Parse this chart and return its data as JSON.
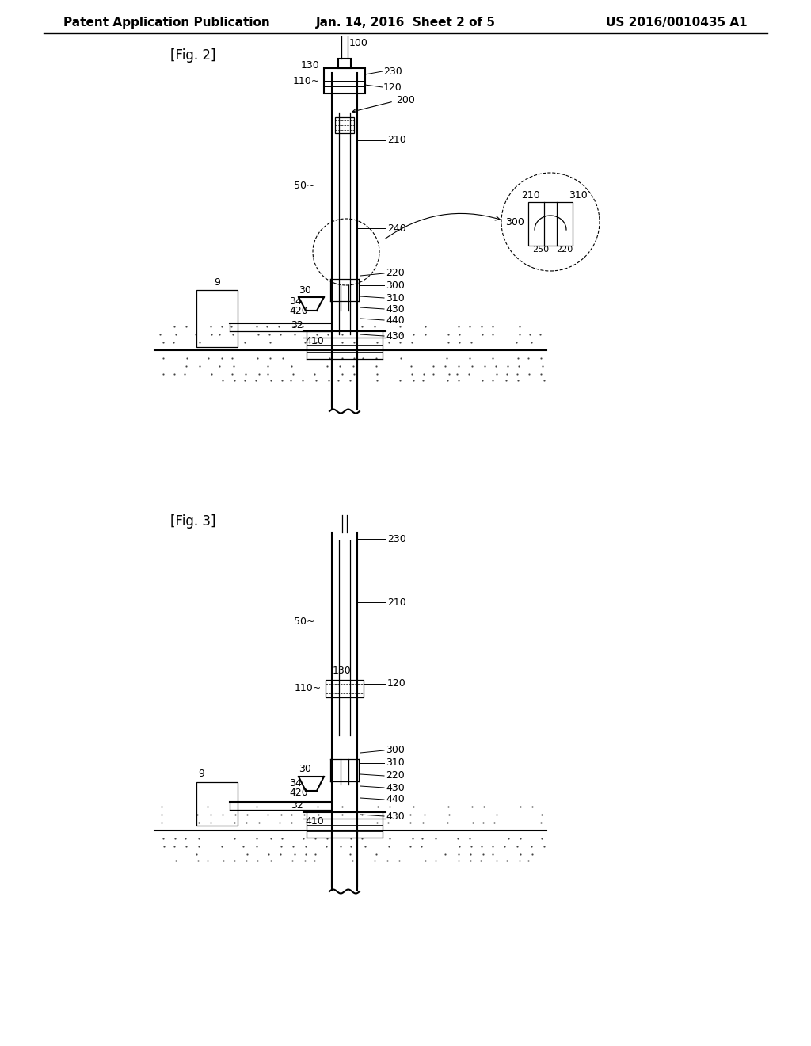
{
  "bg_color": "#ffffff",
  "line_color": "#000000",
  "header_left": "Patent Application Publication",
  "header_center": "Jan. 14, 2016  Sheet 2 of 5",
  "header_right": "US 2016/0010435 A1",
  "fig2_label": "[Fig. 2]",
  "fig3_label": "[Fig. 3]",
  "font_size_header": 11,
  "font_size_label": 12,
  "font_size_ref": 9
}
